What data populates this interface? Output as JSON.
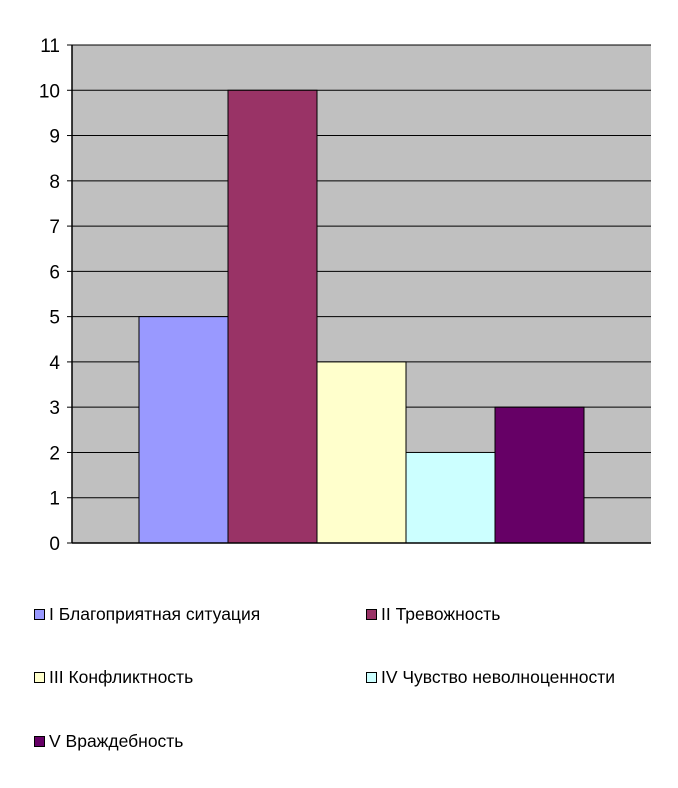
{
  "chart_data": {
    "type": "bar",
    "categories": [
      "I Благоприятная ситуация",
      "II Тревожность",
      "III Конфликтность",
      "IV Чувство неволноценности",
      "V Враждебность"
    ],
    "values": [
      5,
      10,
      4,
      2,
      3
    ],
    "colors": [
      "#9999ff",
      "#993366",
      "#ffffcc",
      "#ccffff",
      "#660066"
    ],
    "plot_background": "#c0c0c0",
    "ylim": [
      0,
      11
    ],
    "yticks": [
      "0",
      "1",
      "2",
      "3",
      "4",
      "5",
      "6",
      "7",
      "8",
      "9",
      "10",
      "11"
    ],
    "grid": true,
    "legend_position": "bottom",
    "title": "",
    "xlabel": "",
    "ylabel": ""
  },
  "legend": [
    {
      "label": "I Благоприятная ситуация",
      "color": "#9999ff"
    },
    {
      "label": "II Тревожность",
      "color": "#993366"
    },
    {
      "label": "III Конфликтность",
      "color": "#ffffcc"
    },
    {
      "label": "IV Чувство неволноценности",
      "color": "#ccffff"
    },
    {
      "label": "V Враждебность",
      "color": "#660066"
    }
  ]
}
